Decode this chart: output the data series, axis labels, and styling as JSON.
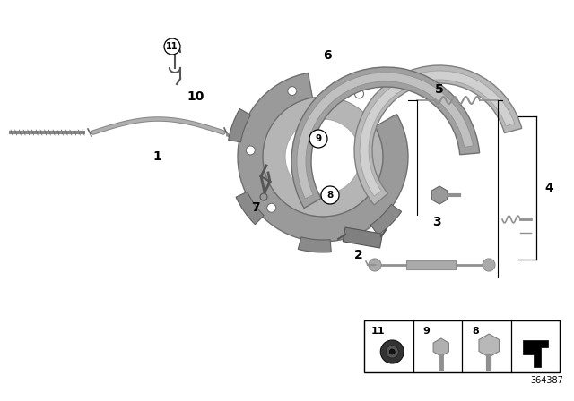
{
  "bg_color": "#ffffff",
  "diagram_number": "364387",
  "gray_fill": "#a8a8a8",
  "gray_stroke": "#808080",
  "dark_gray": "#555555",
  "medium_gray": "#909090",
  "light_gray": "#c0c0c0",
  "black": "#000000"
}
